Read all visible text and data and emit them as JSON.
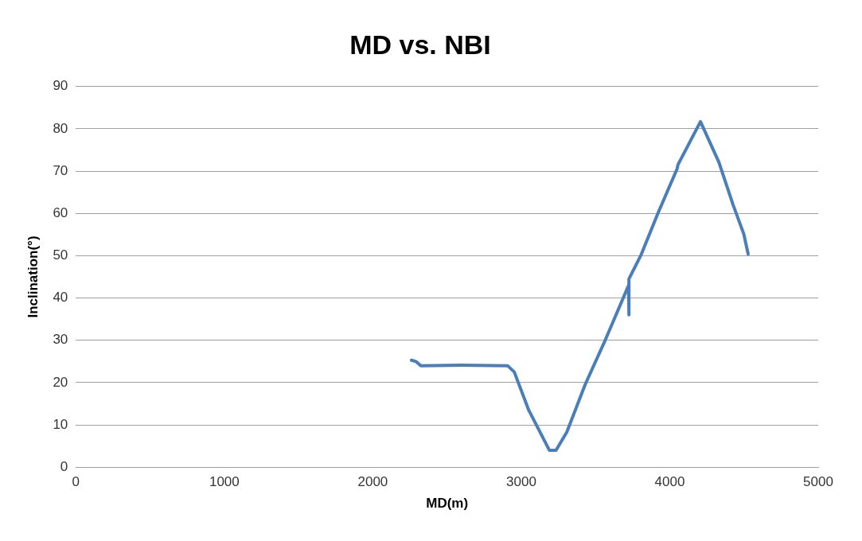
{
  "chart_data": {
    "type": "line",
    "title": "MD vs. NBI",
    "xlabel": "MD(m)",
    "ylabel": "Inclination(°)",
    "series": [
      {
        "color": "#4a7ebb",
        "x": [
          2260,
          2290,
          2323,
          2600,
          2908,
          2953,
          3050,
          3189,
          3234,
          3307,
          3431,
          3560,
          3723,
          3725,
          3725,
          3807,
          3920,
          4050,
          4055,
          4207,
          4331,
          4426,
          4499,
          4528
        ],
        "values": [
          25.3,
          25.0,
          24.0,
          24.1,
          24.0,
          22.5,
          13.5,
          4.0,
          4.0,
          8.3,
          19.6,
          29.6,
          43.0,
          36.0,
          44.5,
          50.2,
          60.0,
          70.6,
          71.5,
          81.7,
          72.1,
          62.1,
          55.1,
          50.4
        ]
      }
    ],
    "xlim": [
      0,
      5000
    ],
    "xticks": [
      0,
      1000,
      2000,
      3000,
      4000,
      5000
    ],
    "ylim": [
      0,
      90
    ],
    "yticks": [
      0,
      10,
      20,
      30,
      40,
      50,
      60,
      70,
      80,
      90
    ],
    "grid": "y",
    "legend": false,
    "marker": "none",
    "line_style": "solid"
  }
}
